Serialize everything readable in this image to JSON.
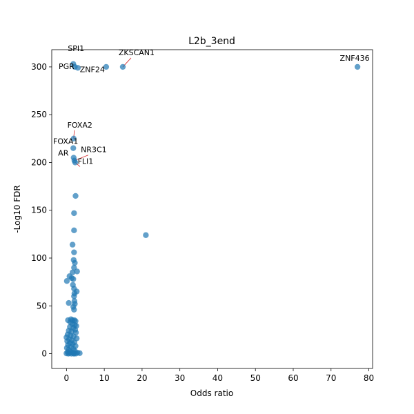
{
  "chart_data": {
    "type": "scatter",
    "title": "L2b_3end",
    "xlabel": "Odds ratio",
    "ylabel": "-Log10 FDR",
    "xlim": [
      -3.9,
      81
    ],
    "ylim": [
      -15.5,
      318
    ],
    "xticks": [
      0,
      10,
      20,
      30,
      40,
      50,
      60,
      70,
      80
    ],
    "yticks": [
      0,
      50,
      100,
      150,
      200,
      250,
      300
    ],
    "grid": false,
    "point_color": "#1f77b4",
    "annotation_line_color": "#d62728",
    "points": [
      {
        "x": 77.0,
        "y": 300
      },
      {
        "x": 14.9,
        "y": 300
      },
      {
        "x": 10.5,
        "y": 300
      },
      {
        "x": 1.8,
        "y": 303
      },
      {
        "x": 2.2,
        "y": 300
      },
      {
        "x": 3.0,
        "y": 299
      },
      {
        "x": 21.0,
        "y": 124
      },
      {
        "x": 1.9,
        "y": 225
      },
      {
        "x": 1.8,
        "y": 215
      },
      {
        "x": 1.9,
        "y": 205
      },
      {
        "x": 2.1,
        "y": 202
      },
      {
        "x": 2.3,
        "y": 200
      },
      {
        "x": 2.4,
        "y": 165
      },
      {
        "x": 2.0,
        "y": 147
      },
      {
        "x": 2.0,
        "y": 129
      },
      {
        "x": 1.6,
        "y": 114
      },
      {
        "x": 2.0,
        "y": 106
      },
      {
        "x": 1.9,
        "y": 98
      },
      {
        "x": 2.2,
        "y": 95
      },
      {
        "x": 2.0,
        "y": 90
      },
      {
        "x": 2.8,
        "y": 86
      },
      {
        "x": 1.6,
        "y": 85
      },
      {
        "x": 0.8,
        "y": 81
      },
      {
        "x": 1.4,
        "y": 79
      },
      {
        "x": 1.8,
        "y": 78
      },
      {
        "x": 0.1,
        "y": 76
      },
      {
        "x": 1.7,
        "y": 72
      },
      {
        "x": 2.0,
        "y": 68
      },
      {
        "x": 2.7,
        "y": 65
      },
      {
        "x": 2.1,
        "y": 63
      },
      {
        "x": 2.0,
        "y": 60
      },
      {
        "x": 2.1,
        "y": 55
      },
      {
        "x": 0.6,
        "y": 53
      },
      {
        "x": 2.2,
        "y": 52
      },
      {
        "x": 1.8,
        "y": 49
      },
      {
        "x": 2.0,
        "y": 46
      },
      {
        "x": 0.4,
        "y": 35
      },
      {
        "x": 1.2,
        "y": 36
      },
      {
        "x": 1.6,
        "y": 35
      },
      {
        "x": 2.1,
        "y": 35
      },
      {
        "x": 2.4,
        "y": 34
      },
      {
        "x": 1.0,
        "y": 33
      },
      {
        "x": 1.5,
        "y": 31
      },
      {
        "x": 2.2,
        "y": 30
      },
      {
        "x": 2.6,
        "y": 29
      },
      {
        "x": 0.9,
        "y": 28
      },
      {
        "x": 1.8,
        "y": 27
      },
      {
        "x": 2.3,
        "y": 25
      },
      {
        "x": 0.6,
        "y": 24
      },
      {
        "x": 1.3,
        "y": 23
      },
      {
        "x": 2.5,
        "y": 22
      },
      {
        "x": 0.3,
        "y": 20
      },
      {
        "x": 1.1,
        "y": 19
      },
      {
        "x": 1.9,
        "y": 18
      },
      {
        "x": 0.0,
        "y": 17
      },
      {
        "x": 2.7,
        "y": 16
      },
      {
        "x": 0.7,
        "y": 15
      },
      {
        "x": 1.4,
        "y": 14
      },
      {
        "x": 0.2,
        "y": 13
      },
      {
        "x": 2.1,
        "y": 12
      },
      {
        "x": 0.9,
        "y": 11
      },
      {
        "x": 1.6,
        "y": 10
      },
      {
        "x": 0.4,
        "y": 9
      },
      {
        "x": 2.4,
        "y": 8
      },
      {
        "x": 1.2,
        "y": 7
      },
      {
        "x": 0.1,
        "y": 6
      },
      {
        "x": 1.8,
        "y": 5
      },
      {
        "x": 0.6,
        "y": 4
      },
      {
        "x": 2.2,
        "y": 3
      },
      {
        "x": 1.0,
        "y": 2
      },
      {
        "x": 0.3,
        "y": 1.5
      },
      {
        "x": 1.5,
        "y": 1
      },
      {
        "x": 2.9,
        "y": 1
      },
      {
        "x": 3.5,
        "y": 0.5
      },
      {
        "x": 0.8,
        "y": 0.5
      },
      {
        "x": 0.0,
        "y": 0.3
      },
      {
        "x": 1.9,
        "y": 0.2
      },
      {
        "x": 2.5,
        "y": 0.1
      },
      {
        "x": 0.5,
        "y": 0
      },
      {
        "x": 1.3,
        "y": 0
      },
      {
        "x": 2.0,
        "y": 0
      }
    ],
    "annotations": [
      {
        "text": "SPI1",
        "x": 1.8,
        "y": 303
      },
      {
        "text": "PGR",
        "x": 2.2,
        "y": 300
      },
      {
        "text": "ZNF24",
        "x": 3.0,
        "y": 299
      },
      {
        "text": "ZKSCAN1",
        "x": 14.9,
        "y": 300
      },
      {
        "text": "ZNF436",
        "x": 77.0,
        "y": 300
      },
      {
        "text": "FOXA2",
        "x": 1.9,
        "y": 225
      },
      {
        "text": "FOXA1",
        "x": 1.8,
        "y": 215
      },
      {
        "text": "NR3C1",
        "x": 2.1,
        "y": 202
      },
      {
        "text": "AR",
        "x": 1.9,
        "y": 205
      },
      {
        "text": "FLI1",
        "x": 2.3,
        "y": 200
      }
    ]
  }
}
